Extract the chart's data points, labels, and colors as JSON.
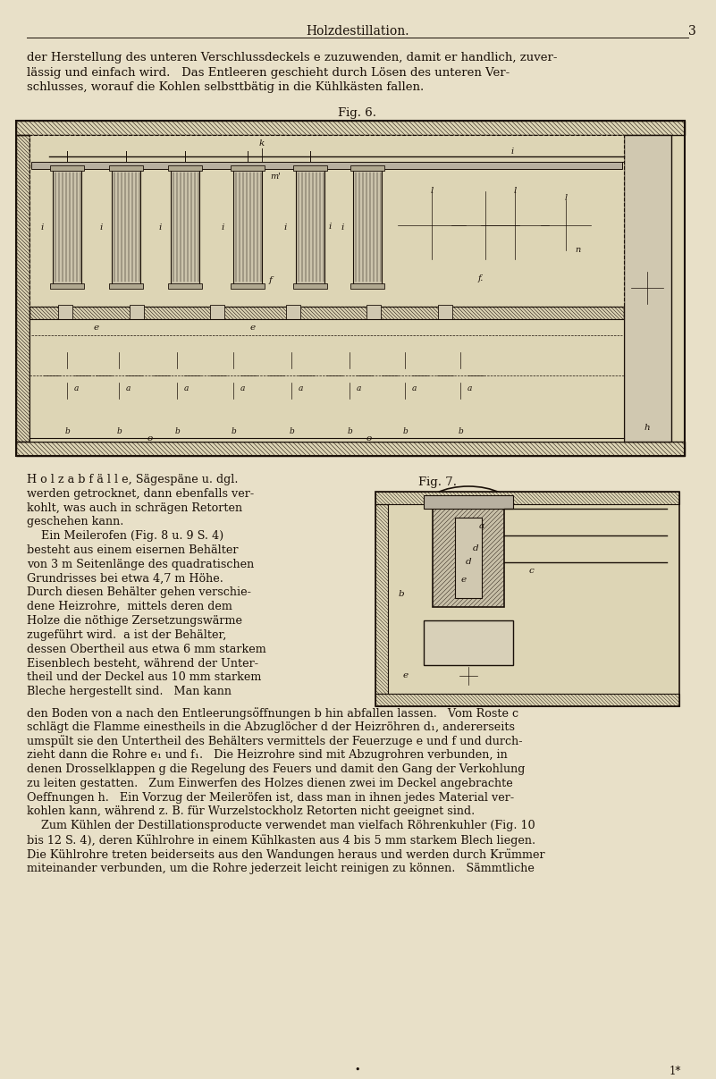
{
  "bg_color": "#e8e0c8",
  "text_color": "#1a1008",
  "page_width": 8.01,
  "page_height": 12.07,
  "dpi": 100,
  "header_title": "Holzdestillation.",
  "header_page": "3",
  "para1": "der Herstellung des unteren Verschlussdeckels e zuzuwenden, damit er handlich, zuver-",
  "para2": "lässig und einfach wird.   Das Entleeren geschieht durch Lösen des unteren Ver-",
  "para3": "schlusses, worauf die Kohlen selbsttbätig in die Kühlkästen fallen.",
  "fig6_caption": "Fig. 6.",
  "fig7_caption": "Fig. 7.",
  "left_col_lines": [
    "H o l z a b f ä l l e, Sägespäne u. dgl.",
    "werden getrocknet, dann ebenfalls ver-",
    "kohlt, was auch in schrägen Retorten",
    "geschehen kann.",
    "    Ein Meilerofen (Fig. 8 u. 9 S. 4)",
    "besteht aus einem eisernen Behälter",
    "von 3 m Seitenlänge des quadratischen",
    "Grundrisses bei etwa 4,7 m Höhe.",
    "Durch diesen Behälter gehen verschie-",
    "dene Heizrohre,  mittels deren dem",
    "Holze die nöthige Zersetzungswärme",
    "zugeführt wird.  a ist der Behälter,",
    "dessen Obertheil aus etwa 6 mm starkem",
    "Eisenblech besteht, während der Unter-",
    "theil und der Deckel aus 10 mm starkem",
    "Bleche hergestellt sind.   Man kann"
  ],
  "full_width_lines": [
    "den Boden von a nach den Entleerungsöffnungen b hin abfallen lassen.   Vom Roste c",
    "schlägt die Flamme einestheils in die Abzuglöcher d der Heizröhren d₁, andererseits",
    "umspült sie den Untertheil des Behälters vermittels der Feuerzuge e und f und durch-",
    "zieht dann die Rohre e₁ und f₁.   Die Heizrohre sind mit Abzugrohren verbunden, in",
    "denen Drosselklappen g die Regelung des Feuers und damit den Gang der Verkohlung",
    "zu leiten gestatten.   Zum Einwerfen des Holzes dienen zwei im Deckel angebrachte",
    "Oeffnungen h.   Ein Vorzug der Meileröfen ist, dass man in ihnen jedes Material ver-",
    "kohlen kann, während z. B. für Wurzelstockholz Retorten nicht geeignet sind.",
    "    Zum Kühlen der Destillationsproducte verwendet man vielfach Röhrenkuhler (Fig. 10",
    "bis 12 S. 4), deren Kühlrohre in einem Kühlkasten aus 4 bis 5 mm starkem Blech liegen.",
    "Die Kühlrohre treten beiderseits aus den Wandungen heraus und werden durch Krümmer",
    "miteinander verbunden, um die Rohre jederzeit leicht reinigen zu können.   Sämmtliche"
  ],
  "footer_dot": "•",
  "footer_ref": "1*"
}
